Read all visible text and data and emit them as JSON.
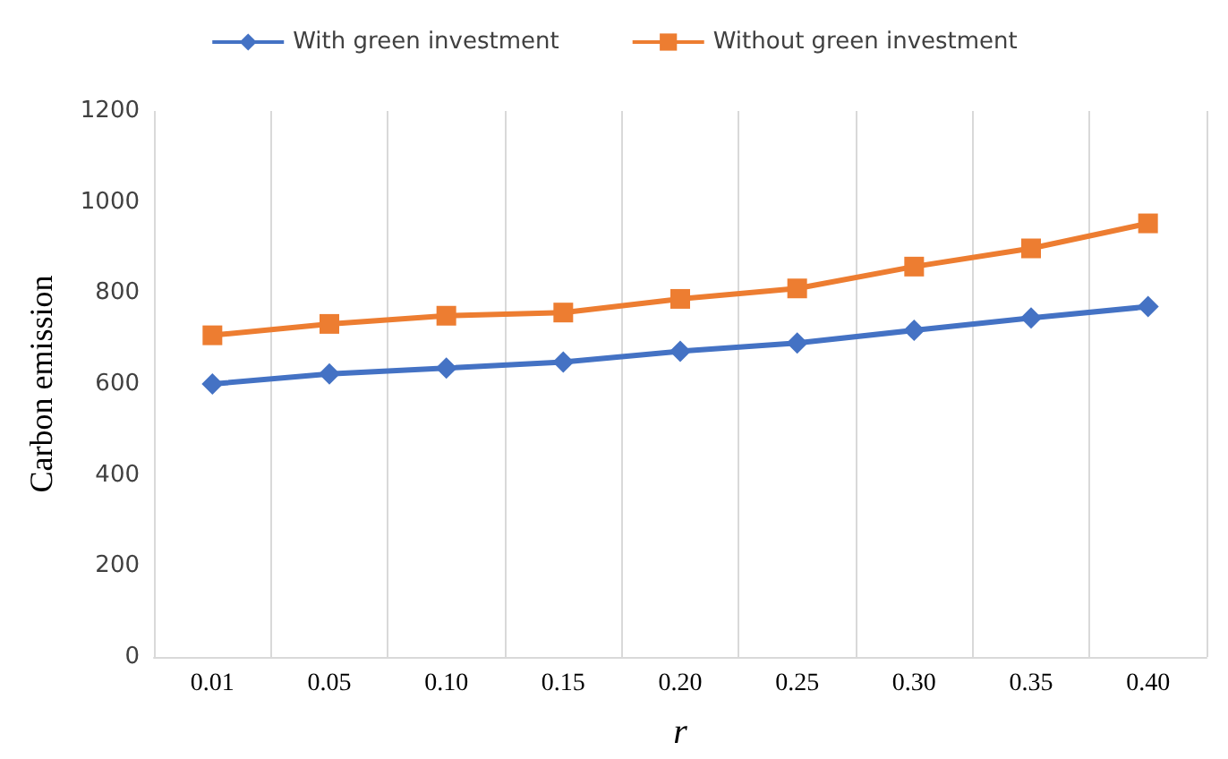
{
  "chart_data": {
    "type": "line",
    "xlabel": "r",
    "ylabel": "Carbon emission",
    "categories": [
      "0.01",
      "0.05",
      "0.10",
      "0.15",
      "0.20",
      "0.25",
      "0.30",
      "0.35",
      "0.40"
    ],
    "series": [
      {
        "name": "With green investment",
        "color": "#4472c4",
        "marker": "diamond",
        "values": [
          600,
          622,
          635,
          648,
          672,
          690,
          718,
          745,
          770
        ]
      },
      {
        "name": "Without green investment",
        "color": "#ed7d31",
        "marker": "square",
        "values": [
          707,
          732,
          750,
          757,
          787,
          810,
          858,
          898,
          953
        ]
      }
    ],
    "ylim": [
      0,
      1200
    ],
    "yticks": [
      0,
      200,
      400,
      600,
      800,
      1000,
      1200
    ],
    "grid": "x",
    "legend": "top"
  }
}
